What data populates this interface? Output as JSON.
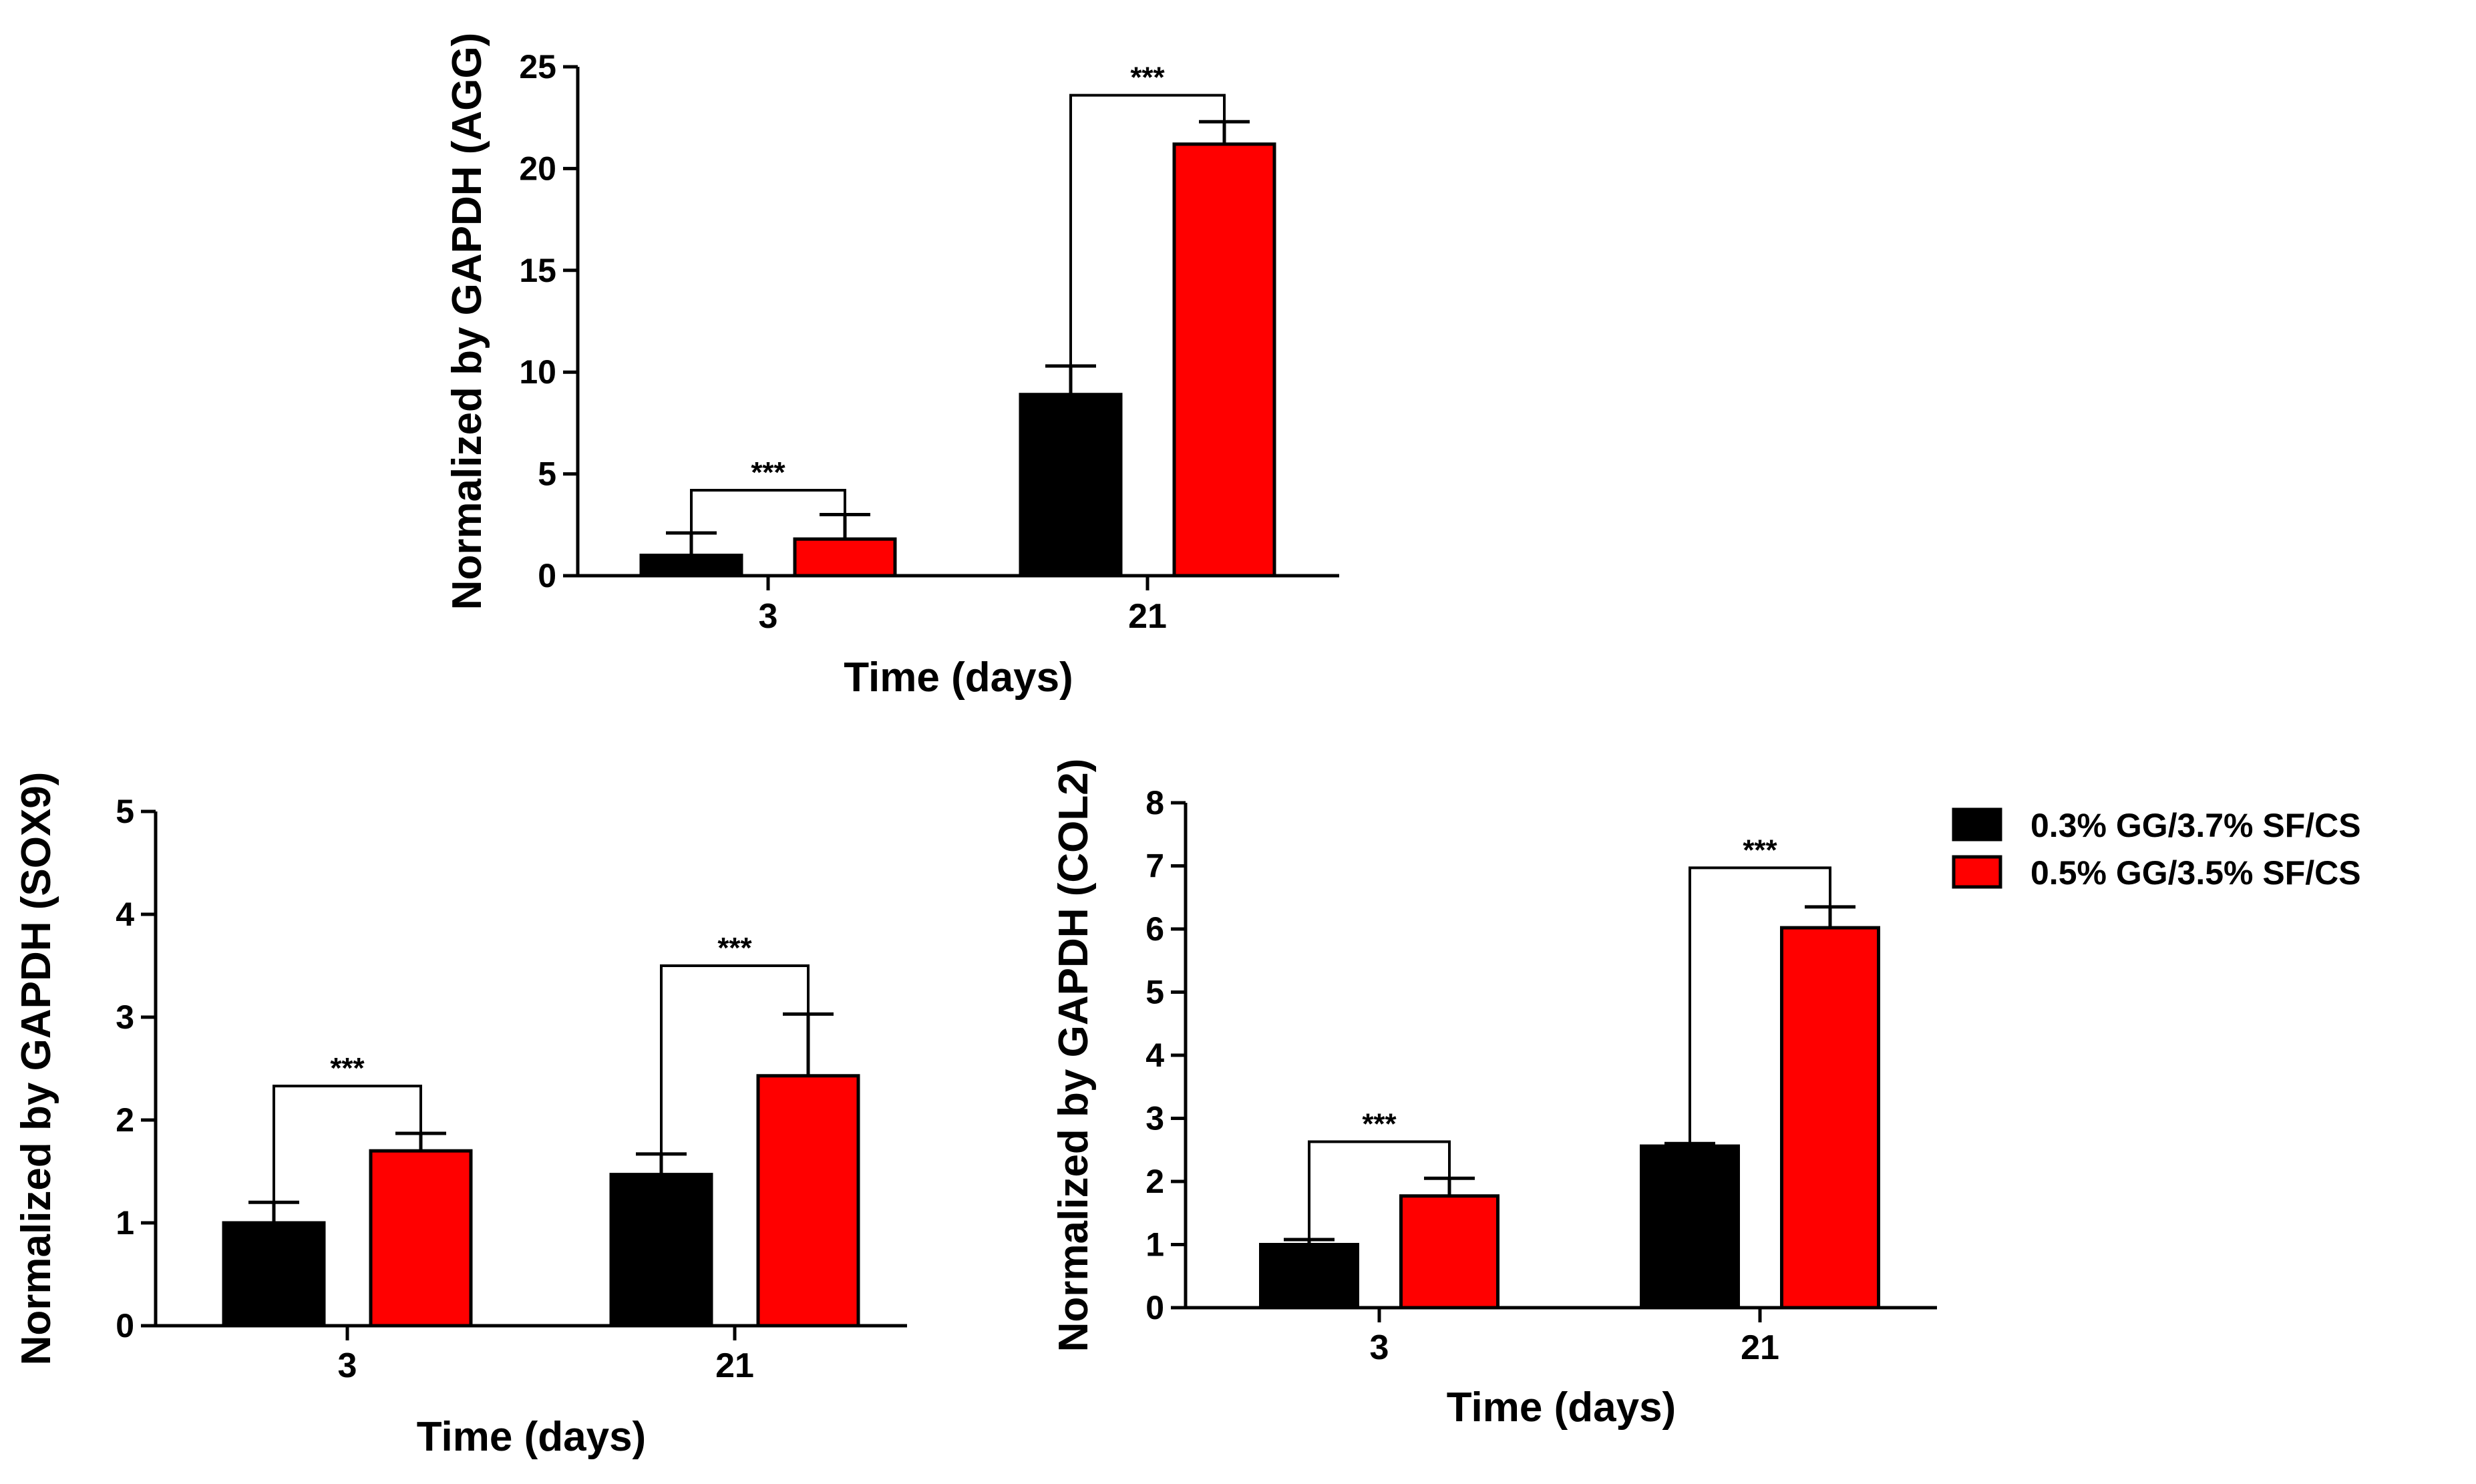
{
  "colors": {
    "series_0": "#000000",
    "series_1": "#ff0000",
    "axis": "#000000"
  },
  "legend": {
    "position": "right",
    "entries": [
      {
        "label": "0.3% GG/3.7% SF/CS",
        "color": "#000000"
      },
      {
        "label": "0.5% GG/3.5% SF/CS",
        "color": "#ff0000"
      }
    ]
  },
  "chart_data": [
    {
      "id": "agg",
      "type": "bar",
      "title": "",
      "xlabel": "Time (days)",
      "ylabel": "Normalized by GAPDH (AGG)",
      "categories": [
        "3",
        "21"
      ],
      "ylim": [
        0,
        25
      ],
      "yticks": [
        0,
        5,
        10,
        15,
        20,
        25
      ],
      "grid": false,
      "series": [
        {
          "name": "0.3% GG/3.7% SF/CS",
          "values": [
            1.0,
            8.9
          ],
          "errors": [
            1.1,
            1.4
          ]
        },
        {
          "name": "0.5% GG/3.5% SF/CS",
          "values": [
            1.8,
            21.2
          ],
          "errors": [
            1.2,
            1.1
          ]
        }
      ],
      "significance": [
        {
          "category": "3",
          "label": "***",
          "bracket_y": 4.2
        },
        {
          "category": "21",
          "label": "***",
          "bracket_y": 23.6
        }
      ]
    },
    {
      "id": "sox9",
      "type": "bar",
      "title": "",
      "xlabel": "Time (days)",
      "ylabel": "Normalized by GAPDH (SOX9)",
      "categories": [
        "3",
        "21"
      ],
      "ylim": [
        0,
        5
      ],
      "yticks": [
        0,
        1,
        2,
        3,
        4,
        5
      ],
      "grid": false,
      "series": [
        {
          "name": "0.3% GG/3.7% SF/CS",
          "values": [
            1.0,
            1.47
          ],
          "errors": [
            0.2,
            0.2
          ]
        },
        {
          "name": "0.5% GG/3.5% SF/CS",
          "values": [
            1.7,
            2.43
          ],
          "errors": [
            0.17,
            0.6
          ]
        }
      ],
      "significance": [
        {
          "category": "3",
          "label": "***",
          "bracket_y": 2.33
        },
        {
          "category": "21",
          "label": "***",
          "bracket_y": 3.5
        }
      ]
    },
    {
      "id": "col2",
      "type": "bar",
      "title": "",
      "xlabel": "Time (days)",
      "ylabel": "Normalized by GAPDH (COL2)",
      "categories": [
        "3",
        "21"
      ],
      "ylim": [
        0,
        8
      ],
      "yticks": [
        0,
        1,
        2,
        3,
        4,
        5,
        6,
        7,
        8
      ],
      "grid": false,
      "series": [
        {
          "name": "0.3% GG/3.7% SF/CS",
          "values": [
            1.0,
            2.56
          ],
          "errors": [
            0.08,
            0.04
          ]
        },
        {
          "name": "0.5% GG/3.5% SF/CS",
          "values": [
            1.77,
            6.02
          ],
          "errors": [
            0.28,
            0.33
          ]
        }
      ],
      "significance": [
        {
          "category": "3",
          "label": "***",
          "bracket_y": 2.63
        },
        {
          "category": "21",
          "label": "***",
          "bracket_y": 6.97
        }
      ]
    }
  ]
}
